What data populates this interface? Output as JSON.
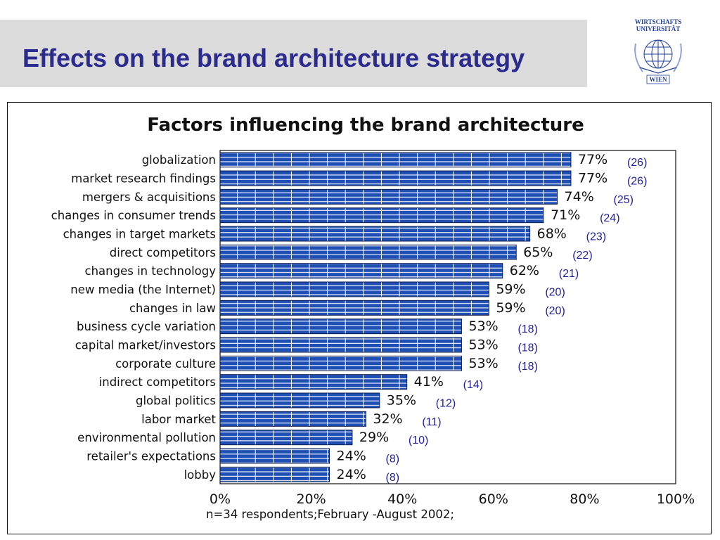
{
  "slide": {
    "title": "Effects on the brand architecture strategy",
    "logo": {
      "line1": "WIRTSCHAFTS",
      "line2": "UNIVERSITÄT",
      "city": "WIEN"
    }
  },
  "chart_data": {
    "type": "bar",
    "orientation": "horizontal",
    "title": "Factors influencing the brand architecture",
    "categories": [
      "globalization",
      "market research findings",
      "mergers & acquisitions",
      "changes in consumer trends",
      "changes in target markets",
      "direct competitors",
      "changes in technology",
      "new media (the Internet)",
      "changes in law",
      "business cycle variation",
      "capital market/investors",
      "corporate culture",
      "indirect competitors",
      "global politics",
      "labor market",
      "environmental pollution",
      "retailer's expectations",
      "lobby"
    ],
    "values": [
      77,
      77,
      74,
      71,
      68,
      65,
      62,
      59,
      59,
      53,
      53,
      53,
      41,
      35,
      32,
      29,
      24,
      24
    ],
    "value_labels": [
      "77%",
      "77%",
      "74%",
      "71%",
      "68%",
      "65%",
      "62%",
      "59%",
      "59%",
      "53%",
      "53%",
      "53%",
      "41%",
      "35%",
      "32%",
      "29%",
      "24%",
      "24%"
    ],
    "counts": [
      "(26)",
      "(26)",
      "(25)",
      "(24)",
      "(23)",
      "(22)",
      "(21)",
      "(20)",
      "(20)",
      "(18)",
      "(18)",
      "(18)",
      "(14)",
      "(12)",
      "(11)",
      "(10)",
      "(8)",
      "(8)"
    ],
    "x_ticks": [
      "0%",
      "20%",
      "40%",
      "60%",
      "80%",
      "100%"
    ],
    "xlim": [
      0,
      100
    ],
    "grid": false,
    "bar_color": "#1f4fb4",
    "count_color": "#1f1fa0",
    "footnote": "n=34 respondents;February -August 2002;"
  },
  "colors": {
    "title": "#2b2b8f",
    "header_band": "#dcdcdc"
  }
}
